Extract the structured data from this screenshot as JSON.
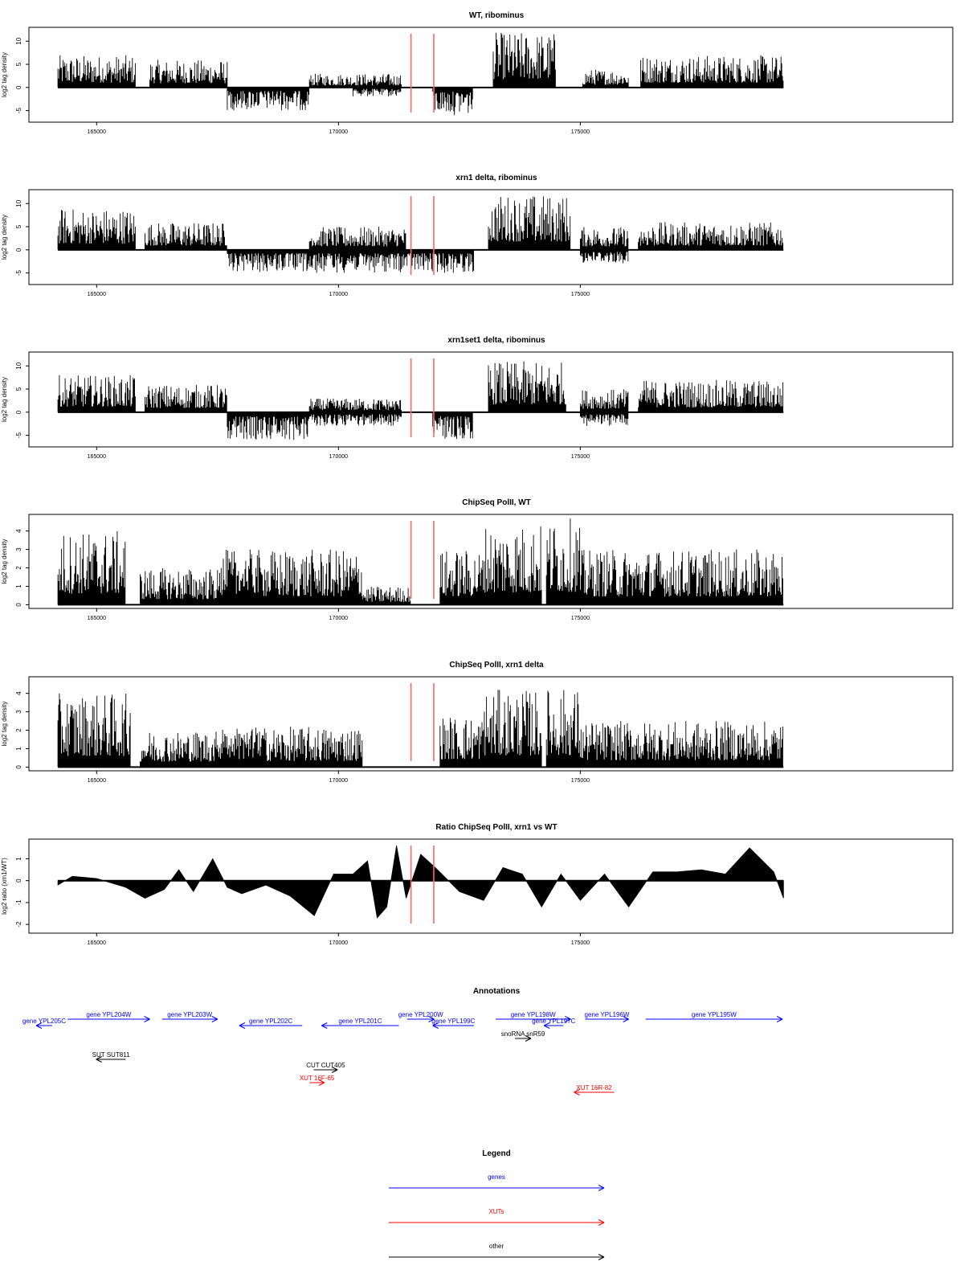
{
  "chart_data": [
    {
      "type": "bar",
      "title": "WT, ribominus",
      "ylabel": "log2 tag density",
      "xlim": [
        163600,
        182700
      ],
      "ylim": [
        -7.5,
        13
      ],
      "yticks": [
        10,
        5,
        0,
        -5
      ],
      "xticks": [
        165000,
        170000,
        175000
      ],
      "highlights_x": [
        171500,
        171970
      ],
      "highlight_color": "#ff6666",
      "bar_color": "#000000",
      "segments": [
        {
          "x": [
            164200,
            165800
          ],
          "sign": 1,
          "max": 7
        },
        {
          "x": [
            166100,
            167700
          ],
          "sign": 1,
          "max": 6
        },
        {
          "x": [
            167700,
            169400
          ],
          "sign": -1,
          "max": 5
        },
        {
          "x": [
            169400,
            171300
          ],
          "sign": 1,
          "max": 3
        },
        {
          "x": [
            170300,
            171300
          ],
          "sign": -1,
          "max": 2
        },
        {
          "x": [
            171950,
            172780
          ],
          "sign": -1,
          "max": 6
        },
        {
          "x": [
            173200,
            174500
          ],
          "sign": 1,
          "max": 12
        },
        {
          "x": [
            175050,
            176000
          ],
          "sign": 1,
          "max": 4
        },
        {
          "x": [
            176250,
            179200
          ],
          "sign": 1,
          "max": 7
        }
      ]
    },
    {
      "type": "bar",
      "title": "xrn1 delta, ribominus",
      "ylabel": "log2 tag density",
      "xlim": [
        163600,
        182700
      ],
      "ylim": [
        -7.5,
        13
      ],
      "yticks": [
        10,
        5,
        0,
        -5
      ],
      "xticks": [
        165000,
        170000,
        175000
      ],
      "highlights_x": [
        171500,
        171970
      ],
      "highlight_color": "#ff6666",
      "bar_color": "#000000",
      "segments": [
        {
          "x": [
            164200,
            165800
          ],
          "sign": 1,
          "max": 9
        },
        {
          "x": [
            166000,
            167700
          ],
          "sign": 1,
          "max": 6
        },
        {
          "x": [
            167700,
            169400
          ],
          "sign": -1,
          "max": 5
        },
        {
          "x": [
            169400,
            171400
          ],
          "sign": 1,
          "max": 5
        },
        {
          "x": [
            169400,
            172800
          ],
          "sign": -1,
          "max": 5
        },
        {
          "x": [
            173100,
            174800
          ],
          "sign": 1,
          "max": 12
        },
        {
          "x": [
            175000,
            176000
          ],
          "sign": 1,
          "max": 5
        },
        {
          "x": [
            175000,
            176000
          ],
          "sign": -1,
          "max": 3
        },
        {
          "x": [
            176200,
            179200
          ],
          "sign": 1,
          "max": 6
        }
      ]
    },
    {
      "type": "bar",
      "title": "xrn1set1 delta, ribominus",
      "ylabel": "log2 tag density",
      "xlim": [
        163600,
        182700
      ],
      "ylim": [
        -7.5,
        13
      ],
      "yticks": [
        10,
        5,
        0,
        -5
      ],
      "xticks": [
        165000,
        170000,
        175000
      ],
      "highlights_x": [
        171500,
        171970
      ],
      "highlight_color": "#ff6666",
      "bar_color": "#000000",
      "segments": [
        {
          "x": [
            164200,
            165800
          ],
          "sign": 1,
          "max": 8
        },
        {
          "x": [
            166000,
            167700
          ],
          "sign": 1,
          "max": 6
        },
        {
          "x": [
            167700,
            169400
          ],
          "sign": -1,
          "max": 6
        },
        {
          "x": [
            169400,
            171300
          ],
          "sign": 1,
          "max": 3
        },
        {
          "x": [
            169400,
            171300
          ],
          "sign": -1,
          "max": 3
        },
        {
          "x": [
            171950,
            172780
          ],
          "sign": -1,
          "max": 6
        },
        {
          "x": [
            173100,
            174700
          ],
          "sign": 1,
          "max": 11
        },
        {
          "x": [
            175000,
            176000
          ],
          "sign": 1,
          "max": 5
        },
        {
          "x": [
            175000,
            176000
          ],
          "sign": -1,
          "max": 3
        },
        {
          "x": [
            176200,
            179200
          ],
          "sign": 1,
          "max": 7
        }
      ]
    },
    {
      "type": "bar",
      "title": "ChipSeq PolII, WT",
      "ylabel": "log2 tag density",
      "xlim": [
        163600,
        182700
      ],
      "ylim": [
        -0.2,
        4.9
      ],
      "yticks": [
        4,
        3,
        2,
        1,
        0
      ],
      "xticks": [
        165000,
        170000,
        175000
      ],
      "highlights_x": [
        171500,
        171970
      ],
      "highlight_color": "#ff6666",
      "bar_color": "#000000",
      "segments": [
        {
          "x": [
            164200,
            165600
          ],
          "sign": 1,
          "max": 4
        },
        {
          "x": [
            165900,
            168500
          ],
          "sign": 1,
          "max": 2
        },
        {
          "x": [
            167500,
            170500
          ],
          "sign": 1,
          "max": 3
        },
        {
          "x": [
            170500,
            171500
          ],
          "sign": 1,
          "max": 1
        },
        {
          "x": [
            172100,
            173000
          ],
          "sign": 1,
          "max": 3
        },
        {
          "x": [
            173000,
            174200
          ],
          "sign": 1,
          "max": 4.4
        },
        {
          "x": [
            174300,
            175000
          ],
          "sign": 1,
          "max": 4.7
        },
        {
          "x": [
            175000,
            179200
          ],
          "sign": 1,
          "max": 3
        }
      ]
    },
    {
      "type": "bar",
      "title": "ChipSeq PolII, xrn1 delta",
      "ylabel": "log2 tag density",
      "xlim": [
        163600,
        182700
      ],
      "ylim": [
        -0.2,
        4.9
      ],
      "yticks": [
        4,
        3,
        2,
        1,
        0
      ],
      "xticks": [
        165000,
        170000,
        175000
      ],
      "highlights_x": [
        171500,
        171970
      ],
      "highlight_color": "#ff6666",
      "bar_color": "#000000",
      "segments": [
        {
          "x": [
            164200,
            165700
          ],
          "sign": 1,
          "max": 4
        },
        {
          "x": [
            165900,
            168500
          ],
          "sign": 1,
          "max": 2
        },
        {
          "x": [
            167500,
            170500
          ],
          "sign": 1,
          "max": 2.2
        },
        {
          "x": [
            172100,
            173000
          ],
          "sign": 1,
          "max": 2.8
        },
        {
          "x": [
            173000,
            174200
          ],
          "sign": 1,
          "max": 4.2
        },
        {
          "x": [
            174300,
            175000
          ],
          "sign": 1,
          "max": 4.3
        },
        {
          "x": [
            175000,
            179200
          ],
          "sign": 1,
          "max": 2.5
        }
      ]
    },
    {
      "type": "area",
      "title": "Ratio ChipSeq PolII, xrn1 vs WT",
      "ylabel": "log2 ratio (xrn1/WT)",
      "xlim": [
        163600,
        182700
      ],
      "ylim": [
        -2.4,
        1.9
      ],
      "yticks": [
        1,
        0,
        -1,
        -2
      ],
      "xticks": [
        165000,
        170000,
        175000
      ],
      "highlights_x": [
        171500,
        171970
      ],
      "highlight_color": "#ff6666",
      "fill_color": "#000000",
      "x": [
        164200,
        164500,
        165000,
        165600,
        166000,
        166400,
        166700,
        167000,
        167400,
        167700,
        168000,
        168500,
        169000,
        169500,
        169900,
        170300,
        170600,
        170800,
        171000,
        171200,
        171400,
        171700,
        172000,
        172500,
        173000,
        173400,
        173800,
        174200,
        174600,
        175000,
        175500,
        176000,
        176500,
        177000,
        177500,
        178000,
        178500,
        179000,
        179200
      ],
      "values": [
        -0.2,
        0.2,
        0.1,
        -0.3,
        -0.8,
        -0.4,
        0.5,
        -0.5,
        1.0,
        -0.3,
        -0.6,
        -0.2,
        -0.7,
        -1.6,
        0.3,
        0.3,
        0.9,
        -1.7,
        -1.2,
        1.6,
        -0.8,
        1.2,
        0.6,
        -0.5,
        -0.9,
        0.6,
        0.3,
        -1.2,
        0.3,
        -0.9,
        0.3,
        -1.2,
        0.4,
        0.4,
        0.5,
        0.3,
        1.5,
        0.4,
        -0.8
      ]
    }
  ],
  "annotations": {
    "title": "Annotations",
    "features": [
      {
        "label": "gene YPL205C",
        "kind": "gene",
        "x0": 164080,
        "x1": 163750,
        "row": 1
      },
      {
        "label": "gene YPL204W",
        "kind": "gene",
        "x0": 164400,
        "x1": 166100,
        "row": 0
      },
      {
        "label": "gene YPL203W",
        "kind": "gene",
        "x0": 166350,
        "x1": 167500,
        "row": 0
      },
      {
        "label": "gene YPL202C",
        "kind": "gene",
        "x0": 169250,
        "x1": 167950,
        "row": 1
      },
      {
        "label": "gene YPL201C",
        "kind": "gene",
        "x0": 171250,
        "x1": 169650,
        "row": 1
      },
      {
        "label": "gene YPL200W",
        "kind": "gene",
        "x0": 171420,
        "x1": 171980,
        "row": 0
      },
      {
        "label": "gene YPL199C",
        "kind": "gene",
        "x0": 172800,
        "x1": 171950,
        "row": 1
      },
      {
        "label": "gene YPL198W",
        "kind": "gene",
        "x0": 173250,
        "x1": 174800,
        "row": 0
      },
      {
        "label": "gene YPL197C",
        "kind": "gene",
        "x0": 174650,
        "x1": 174250,
        "row": 1
      },
      {
        "label": "gene YPL196W",
        "kind": "gene",
        "x0": 175100,
        "x1": 176000,
        "row": 0
      },
      {
        "label": "gene YPL195W",
        "kind": "gene",
        "x0": 176350,
        "x1": 179180,
        "row": 0
      },
      {
        "label": "snoRNA snR59",
        "kind": "other",
        "x0": 173650,
        "x1": 173980,
        "row": 2
      },
      {
        "label": "SUT SUT811",
        "kind": "other",
        "x0": 165600,
        "x1": 164990,
        "row": 3
      },
      {
        "label": "CUT CUT405",
        "kind": "other",
        "x0": 169490,
        "x1": 169980,
        "row": 4
      },
      {
        "label": "XUT 16F-65",
        "kind": "xut",
        "x0": 169400,
        "x1": 169710,
        "row": 5
      },
      {
        "label": "XUT 16R-82",
        "kind": "xut",
        "x0": 175700,
        "x1": 174870,
        "row": 6
      }
    ]
  },
  "legend": {
    "title": "Legend",
    "entries": [
      {
        "label": "genes",
        "kind": "gene"
      },
      {
        "label": "XUTs",
        "kind": "xut"
      },
      {
        "label": "other",
        "kind": "other"
      }
    ]
  },
  "colors": {
    "gene": "#0000ff",
    "xut": "#ff0000",
    "other": "#000000"
  }
}
